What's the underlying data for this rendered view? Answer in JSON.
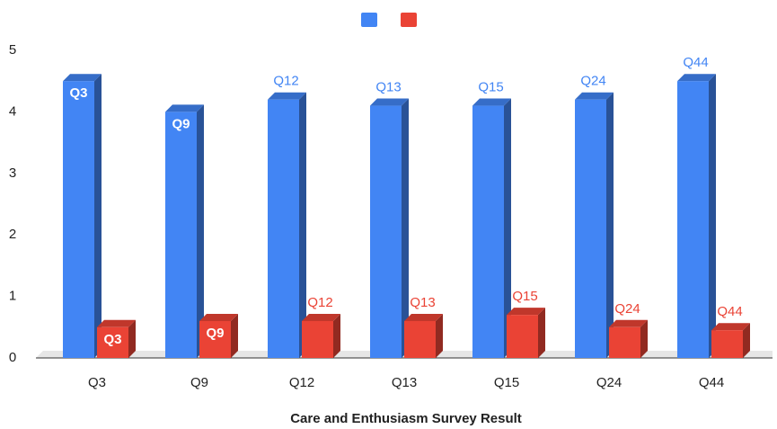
{
  "chart_data": {
    "type": "bar3d",
    "title": "Care and Enthusiasm Survey Result",
    "categories": [
      "Q3",
      "Q9",
      "Q12",
      "Q13",
      "Q15",
      "Q24",
      "Q44"
    ],
    "series": [
      {
        "color": "#4285f4",
        "values": [
          4.5,
          4.0,
          4.2,
          4.1,
          4.1,
          4.2,
          4.5
        ]
      },
      {
        "color": "#ea4335",
        "values": [
          0.5,
          0.6,
          0.6,
          0.6,
          0.7,
          0.5,
          0.45
        ]
      }
    ],
    "ylim": [
      0,
      5
    ],
    "yticks": [
      0,
      1,
      2,
      3,
      4,
      5
    ],
    "grid": false,
    "legend": "top"
  }
}
